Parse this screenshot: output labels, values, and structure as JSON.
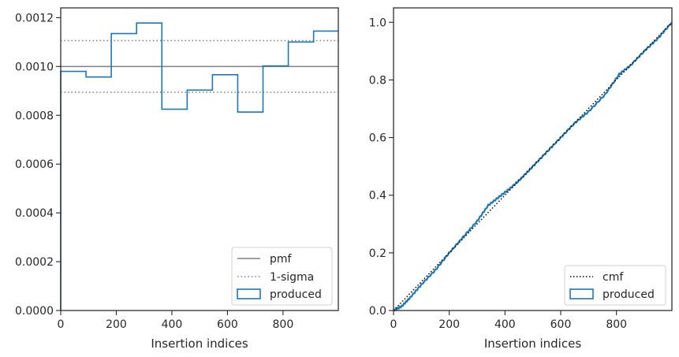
{
  "chart_data": [
    {
      "type": "line",
      "subtype": "step-histogram",
      "xlabel": "Insertion indices",
      "ylabel": "",
      "xlim": [
        0,
        999
      ],
      "ylim": [
        0,
        0.00124
      ],
      "xticks": [
        0,
        200,
        400,
        600,
        800
      ],
      "xtick_labels": [
        "0",
        "200",
        "400",
        "600",
        "800"
      ],
      "yticks": [
        0,
        0.0002,
        0.0004,
        0.0006,
        0.0008,
        0.001,
        0.0012
      ],
      "ytick_labels": [
        "0.0000",
        "0.0002",
        "0.0004",
        "0.0006",
        "0.0008",
        "0.0010",
        "0.0012"
      ],
      "pmf": 0.001,
      "sigma_band": [
        0.000894,
        0.001106
      ],
      "bin_edges": [
        0,
        91,
        182,
        273,
        364,
        455,
        546,
        637,
        728,
        819,
        910,
        999
      ],
      "produced": [
        0.00098,
        0.000957,
        0.001135,
        0.001178,
        0.000825,
        0.000903,
        0.000966,
        0.000813,
        0.001002,
        0.0011,
        0.001145
      ],
      "legend": [
        "pmf",
        "1-sigma",
        "produced"
      ],
      "legend_position": "bottom-right",
      "colors": {
        "pmf": "#808080",
        "sigma": "#808080",
        "produced": "#1f77b4"
      }
    },
    {
      "type": "line",
      "xlabel": "Insertion indices",
      "ylabel": "",
      "xlim": [
        0,
        999
      ],
      "ylim": [
        0,
        1.05
      ],
      "xticks": [
        0,
        200,
        400,
        600,
        800
      ],
      "xtick_labels": [
        "0",
        "200",
        "400",
        "600",
        "800"
      ],
      "yticks": [
        0,
        0.2,
        0.4,
        0.6,
        0.8,
        1.0
      ],
      "ytick_labels": [
        "0.0",
        "0.2",
        "0.4",
        "0.6",
        "0.8",
        "1.0"
      ],
      "cmf_x": [
        0,
        999
      ],
      "cmf_y": [
        0,
        1.0
      ],
      "produced_x": [
        0,
        30,
        60,
        100,
        150,
        200,
        250,
        300,
        340,
        380,
        420,
        460,
        500,
        550,
        600,
        650,
        700,
        760,
        810,
        850,
        900,
        950,
        999
      ],
      "produced_y": [
        0,
        0.015,
        0.045,
        0.09,
        0.14,
        0.2,
        0.255,
        0.31,
        0.365,
        0.395,
        0.425,
        0.46,
        0.5,
        0.55,
        0.6,
        0.65,
        0.69,
        0.75,
        0.82,
        0.85,
        0.9,
        0.945,
        1.0
      ],
      "legend": [
        "cmf",
        "produced"
      ],
      "legend_position": "bottom-right",
      "colors": {
        "cmf": "#000000",
        "produced": "#1f77b4"
      }
    }
  ]
}
